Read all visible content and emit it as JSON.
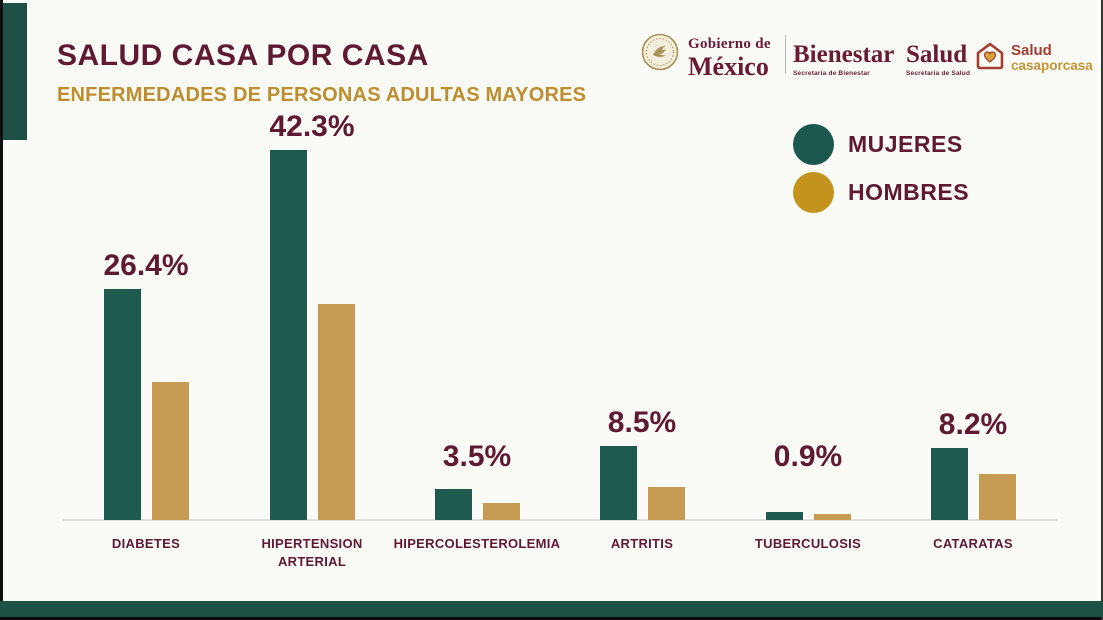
{
  "slide": {
    "title": "SALUD CASA POR CASA",
    "subtitle": "ENFERMEDADES DE PERSONAS ADULTAS MAYORES"
  },
  "header": {
    "gobierno_line1": "Gobierno de",
    "gobierno_line2": "México",
    "bienestar": "Bienestar",
    "bienestar_sub": "Secretaría de Bienestar",
    "salud": "Salud",
    "salud_sub": "Secretaría de Salud",
    "casaporcasa_line1": "Salud",
    "casaporcasa_line2": "casaporcasa"
  },
  "legend": {
    "items": [
      {
        "label": "MUJERES",
        "color": "#1a574c"
      },
      {
        "label": "HOMBRES",
        "color": "#c3931d"
      }
    ]
  },
  "chart_data": {
    "type": "bar",
    "title": "ENFERMEDADES DE PERSONAS ADULTAS MAYORES",
    "categories": [
      "DIABETES",
      "HIPERTENSION\nARTERIAL",
      "HIPERCOLESTEROLEMIA",
      "ARTRITIS",
      "TUBERCULOSIS",
      "CATARATAS"
    ],
    "series": [
      {
        "name": "MUJERES",
        "color": "#1e5b4e",
        "values": [
          26.4,
          42.3,
          3.5,
          8.5,
          0.9,
          8.2
        ],
        "data_labels": [
          "26.4%",
          "42.3%",
          "3.5%",
          "8.5%",
          "0.9%",
          "8.2%"
        ]
      },
      {
        "name": "HOMBRES",
        "color": "#c69c55",
        "values": [
          15.8,
          24.7,
          1.9,
          3.8,
          0.7,
          5.3
        ],
        "values_note": "not labeled in image; estimated from bar heights"
      }
    ],
    "value_labels_shown_for": "MUJERES",
    "ylim": [
      0,
      45
    ],
    "grid": false,
    "legend_position": "top-right"
  },
  "colors": {
    "maroon_text": "#5f1a32",
    "gold_subtitle": "#bd8d2e",
    "accent_green": "#1f5045",
    "bar_mujeres": "#1e5b4e",
    "bar_hombres": "#c69c55",
    "baseline": "#e2e2dd",
    "logo_maroon": "#6a1a33",
    "logo_red": "#a33d31",
    "logo_gold": "#c59532"
  }
}
